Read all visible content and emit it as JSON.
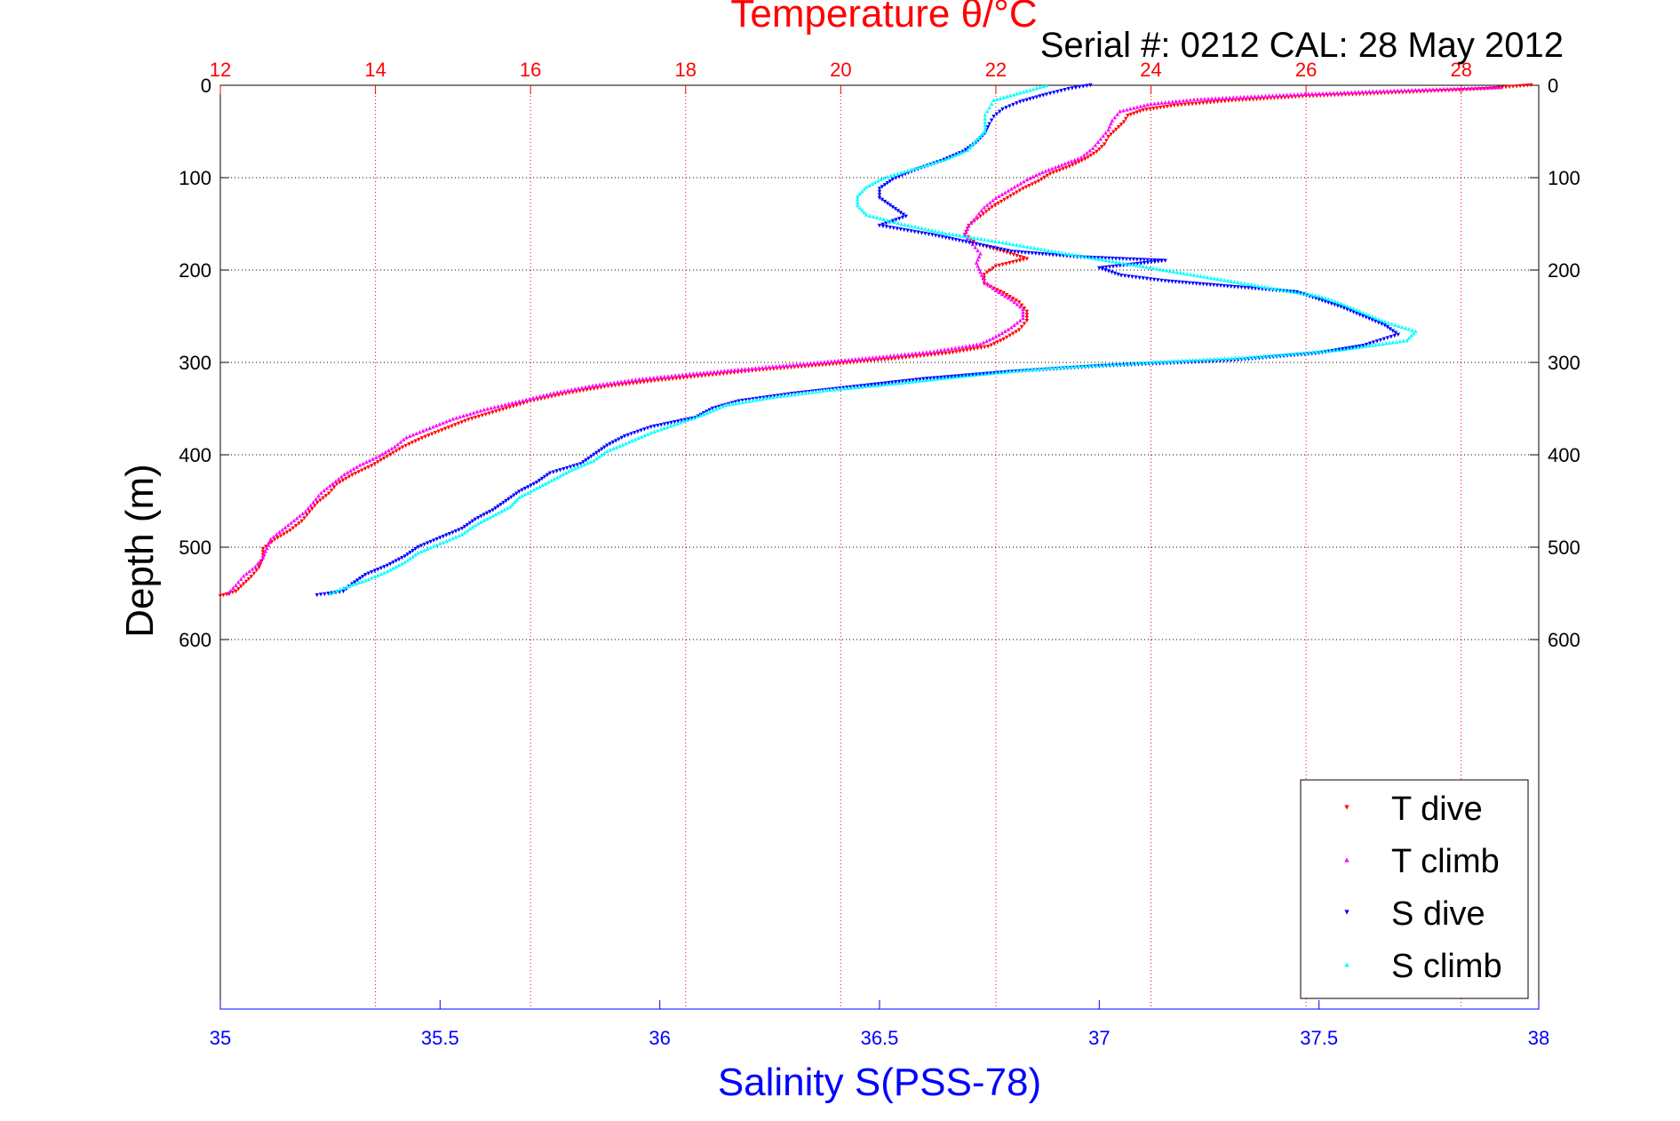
{
  "chart_data": {
    "type": "scatter",
    "title": "Temperature θ/°C",
    "subtitle": "Serial #: 0212  CAL: 28 May 2012",
    "ylabel": "Depth (m)",
    "xlabel": "Salinity S(PSS-78)",
    "x_top_label": "Temperature θ/°C",
    "temperature_axis": {
      "range": [
        12,
        29
      ],
      "ticks": [
        "12",
        "14",
        "16",
        "18",
        "20",
        "22",
        "24",
        "26",
        "28"
      ]
    },
    "salinity_axis": {
      "range": [
        35,
        38
      ],
      "ticks": [
        "35",
        "35.5",
        "36",
        "36.5",
        "37",
        "37.5",
        "38"
      ]
    },
    "depth_axis": {
      "range": [
        0,
        1000
      ],
      "inverted": true,
      "ticks": [
        "0",
        "100",
        "200",
        "300",
        "400",
        "500",
        "600"
      ]
    },
    "grid": true,
    "legend_position": "bottom-right",
    "series": [
      {
        "name": "T dive",
        "axis": "temperature",
        "marker": "triangle-down",
        "color": "#ff0000",
        "points": [
          [
            28.9,
            0
          ],
          [
            28.3,
            4
          ],
          [
            27.2,
            8
          ],
          [
            26.0,
            12
          ],
          [
            25.0,
            17
          ],
          [
            24.3,
            22
          ],
          [
            23.9,
            27
          ],
          [
            23.7,
            33
          ],
          [
            23.65,
            40
          ],
          [
            23.55,
            48
          ],
          [
            23.45,
            56
          ],
          [
            23.4,
            64
          ],
          [
            23.3,
            72
          ],
          [
            23.15,
            80
          ],
          [
            22.95,
            88
          ],
          [
            22.7,
            96
          ],
          [
            22.55,
            104
          ],
          [
            22.35,
            112
          ],
          [
            22.15,
            122
          ],
          [
            21.95,
            132
          ],
          [
            21.8,
            142
          ],
          [
            21.65,
            152
          ],
          [
            21.6,
            162
          ],
          [
            21.75,
            172
          ],
          [
            22.1,
            180
          ],
          [
            22.4,
            188
          ],
          [
            22.0,
            196
          ],
          [
            21.85,
            205
          ],
          [
            21.85,
            215
          ],
          [
            22.1,
            225
          ],
          [
            22.3,
            235
          ],
          [
            22.4,
            245
          ],
          [
            22.4,
            255
          ],
          [
            22.3,
            265
          ],
          [
            22.1,
            275
          ],
          [
            21.9,
            283
          ],
          [
            21.4,
            290
          ],
          [
            20.7,
            296
          ],
          [
            19.9,
            302
          ],
          [
            19.0,
            308
          ],
          [
            18.3,
            314
          ],
          [
            17.6,
            320
          ],
          [
            17.0,
            326
          ],
          [
            16.5,
            333
          ],
          [
            16.0,
            342
          ],
          [
            15.6,
            352
          ],
          [
            15.2,
            362
          ],
          [
            14.9,
            372
          ],
          [
            14.6,
            382
          ],
          [
            14.35,
            392
          ],
          [
            14.15,
            402
          ],
          [
            13.95,
            412
          ],
          [
            13.7,
            422
          ],
          [
            13.5,
            432
          ],
          [
            13.4,
            442
          ],
          [
            13.25,
            452
          ],
          [
            13.15,
            462
          ],
          [
            13.05,
            472
          ],
          [
            12.9,
            482
          ],
          [
            12.7,
            492
          ],
          [
            12.55,
            502
          ],
          [
            12.55,
            512
          ],
          [
            12.5,
            522
          ],
          [
            12.4,
            532
          ],
          [
            12.3,
            540
          ],
          [
            12.2,
            548
          ],
          [
            12.0,
            553
          ]
        ]
      },
      {
        "name": "T climb",
        "axis": "temperature",
        "marker": "triangle-up",
        "color": "#ff00ff",
        "points": [
          [
            28.5,
            2
          ],
          [
            27.0,
            6
          ],
          [
            25.8,
            10
          ],
          [
            24.6,
            15
          ],
          [
            24.0,
            20
          ],
          [
            23.6,
            28
          ],
          [
            23.5,
            38
          ],
          [
            23.45,
            48
          ],
          [
            23.35,
            58
          ],
          [
            23.25,
            68
          ],
          [
            23.1,
            78
          ],
          [
            22.85,
            86
          ],
          [
            22.6,
            94
          ],
          [
            22.4,
            102
          ],
          [
            22.2,
            112
          ],
          [
            22.0,
            122
          ],
          [
            21.85,
            132
          ],
          [
            21.75,
            142
          ],
          [
            21.65,
            152
          ],
          [
            21.6,
            162
          ],
          [
            21.7,
            172
          ],
          [
            21.8,
            182
          ],
          [
            21.75,
            192
          ],
          [
            21.8,
            202
          ],
          [
            21.85,
            212
          ],
          [
            22.0,
            222
          ],
          [
            22.2,
            232
          ],
          [
            22.35,
            242
          ],
          [
            22.35,
            252
          ],
          [
            22.2,
            262
          ],
          [
            22.0,
            272
          ],
          [
            21.8,
            280
          ],
          [
            21.2,
            288
          ],
          [
            20.5,
            294
          ],
          [
            19.7,
            300
          ],
          [
            18.9,
            306
          ],
          [
            18.1,
            312
          ],
          [
            17.4,
            318
          ],
          [
            16.8,
            325
          ],
          [
            16.3,
            333
          ],
          [
            15.9,
            341
          ],
          [
            15.4,
            351
          ],
          [
            15.0,
            361
          ],
          [
            14.7,
            371
          ],
          [
            14.4,
            381
          ],
          [
            14.25,
            391
          ],
          [
            14.05,
            401
          ],
          [
            13.8,
            411
          ],
          [
            13.6,
            421
          ],
          [
            13.45,
            431
          ],
          [
            13.3,
            441
          ],
          [
            13.2,
            451
          ],
          [
            13.1,
            461
          ],
          [
            12.95,
            471
          ],
          [
            12.8,
            481
          ],
          [
            12.65,
            491
          ],
          [
            12.6,
            501
          ],
          [
            12.55,
            511
          ],
          [
            12.45,
            521
          ],
          [
            12.3,
            531
          ],
          [
            12.2,
            541
          ],
          [
            12.1,
            550
          ]
        ]
      },
      {
        "name": "S dive",
        "axis": "salinity",
        "marker": "triangle-down",
        "color": "#0000ff",
        "points": [
          [
            36.98,
            0
          ],
          [
            36.93,
            4
          ],
          [
            36.88,
            10
          ],
          [
            36.82,
            18
          ],
          [
            36.78,
            26
          ],
          [
            36.76,
            34
          ],
          [
            36.75,
            42
          ],
          [
            36.74,
            52
          ],
          [
            36.72,
            62
          ],
          [
            36.69,
            72
          ],
          [
            36.64,
            82
          ],
          [
            36.58,
            92
          ],
          [
            36.53,
            102
          ],
          [
            36.5,
            112
          ],
          [
            36.5,
            122
          ],
          [
            36.53,
            132
          ],
          [
            36.56,
            142
          ],
          [
            36.5,
            152
          ],
          [
            36.62,
            162
          ],
          [
            36.72,
            172
          ],
          [
            36.8,
            180
          ],
          [
            36.95,
            186
          ],
          [
            37.15,
            190
          ],
          [
            37.0,
            198
          ],
          [
            37.05,
            206
          ],
          [
            37.15,
            212
          ],
          [
            37.3,
            218
          ],
          [
            37.45,
            224
          ],
          [
            37.5,
            232
          ],
          [
            37.55,
            240
          ],
          [
            37.6,
            250
          ],
          [
            37.65,
            260
          ],
          [
            37.68,
            270
          ],
          [
            37.6,
            282
          ],
          [
            37.5,
            290
          ],
          [
            37.3,
            298
          ],
          [
            37.0,
            304
          ],
          [
            36.8,
            310
          ],
          [
            36.6,
            318
          ],
          [
            36.45,
            326
          ],
          [
            36.3,
            334
          ],
          [
            36.18,
            342
          ],
          [
            36.12,
            350
          ],
          [
            36.08,
            360
          ],
          [
            35.98,
            370
          ],
          [
            35.92,
            380
          ],
          [
            35.88,
            390
          ],
          [
            35.85,
            400
          ],
          [
            35.82,
            410
          ],
          [
            35.75,
            420
          ],
          [
            35.72,
            430
          ],
          [
            35.68,
            440
          ],
          [
            35.65,
            450
          ],
          [
            35.62,
            460
          ],
          [
            35.58,
            470
          ],
          [
            35.55,
            480
          ],
          [
            35.5,
            490
          ],
          [
            35.45,
            500
          ],
          [
            35.42,
            510
          ],
          [
            35.38,
            520
          ],
          [
            35.33,
            530
          ],
          [
            35.3,
            540
          ],
          [
            35.28,
            548
          ],
          [
            35.22,
            552
          ]
        ]
      },
      {
        "name": "S climb",
        "axis": "salinity",
        "marker": "triangle-up",
        "color": "#00ffff",
        "points": [
          [
            36.88,
            0
          ],
          [
            36.82,
            8
          ],
          [
            36.76,
            16
          ],
          [
            36.75,
            24
          ],
          [
            36.74,
            32
          ],
          [
            36.74,
            40
          ],
          [
            36.74,
            50
          ],
          [
            36.72,
            60
          ],
          [
            36.7,
            70
          ],
          [
            36.65,
            80
          ],
          [
            36.58,
            90
          ],
          [
            36.51,
            100
          ],
          [
            36.47,
            110
          ],
          [
            36.45,
            120
          ],
          [
            36.45,
            130
          ],
          [
            36.47,
            140
          ],
          [
            36.55,
            150
          ],
          [
            36.65,
            160
          ],
          [
            36.78,
            170
          ],
          [
            36.9,
            180
          ],
          [
            37.0,
            188
          ],
          [
            37.1,
            196
          ],
          [
            37.2,
            204
          ],
          [
            37.3,
            212
          ],
          [
            37.4,
            220
          ],
          [
            37.5,
            228
          ],
          [
            37.55,
            236
          ],
          [
            37.6,
            246
          ],
          [
            37.65,
            256
          ],
          [
            37.72,
            266
          ],
          [
            37.7,
            276
          ],
          [
            37.55,
            286
          ],
          [
            37.35,
            294
          ],
          [
            37.1,
            300
          ],
          [
            36.88,
            306
          ],
          [
            36.7,
            314
          ],
          [
            36.55,
            322
          ],
          [
            36.38,
            330
          ],
          [
            36.25,
            338
          ],
          [
            36.15,
            346
          ],
          [
            36.1,
            356
          ],
          [
            36.04,
            366
          ],
          [
            35.98,
            376
          ],
          [
            35.93,
            386
          ],
          [
            35.88,
            396
          ],
          [
            35.85,
            406
          ],
          [
            35.8,
            416
          ],
          [
            35.76,
            426
          ],
          [
            35.72,
            436
          ],
          [
            35.68,
            446
          ],
          [
            35.66,
            456
          ],
          [
            35.62,
            466
          ],
          [
            35.58,
            476
          ],
          [
            35.55,
            486
          ],
          [
            35.5,
            496
          ],
          [
            35.45,
            506
          ],
          [
            35.42,
            516
          ],
          [
            35.38,
            526
          ],
          [
            35.33,
            536
          ],
          [
            35.28,
            544
          ],
          [
            35.25,
            550
          ]
        ]
      }
    ]
  }
}
